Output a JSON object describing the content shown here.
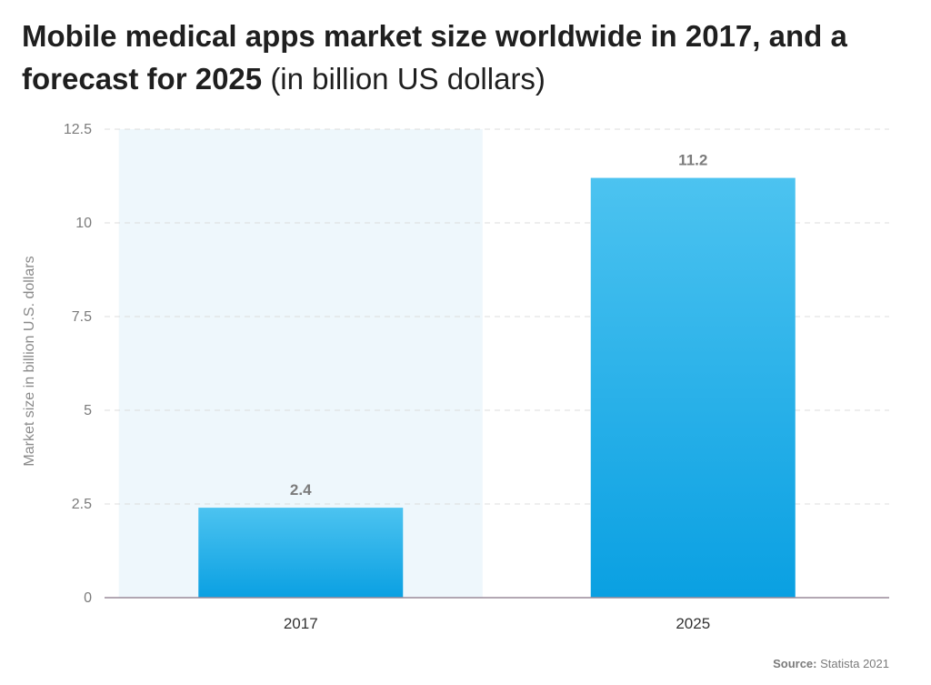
{
  "title": {
    "bold": "Mobile medical apps market size worldwide in 2017, and a forecast for 2025",
    "light": "(in billion  US dollars)"
  },
  "source": {
    "label": "Source:",
    "value": "Statista 2021"
  },
  "colors": {
    "bar_top": "#4cc3f0",
    "bar_bottom": "#0aa0e2",
    "highlight_band": "#eef7fc",
    "gridline": "#dcdcdc",
    "axis": "#9a8a9a"
  },
  "chart_data": {
    "type": "bar",
    "title": "Mobile medical apps market size worldwide in 2017, and a forecast for 2025 (in billion  US dollars)",
    "categories": [
      "2017",
      "2025"
    ],
    "values": [
      2.4,
      11.2
    ],
    "value_labels": [
      "2.4",
      "11.2"
    ],
    "xlabel": "",
    "ylabel": "Market size in billion U.S. dollars",
    "ylim": [
      0,
      12.5
    ],
    "yticks": [
      0,
      2.5,
      5,
      7.5,
      10,
      12.5
    ],
    "ytick_labels": [
      "0",
      "2.5",
      "5",
      "7.5",
      "10",
      "12.5"
    ],
    "grid": true,
    "legend": "none",
    "highlighted_category": "2017"
  }
}
